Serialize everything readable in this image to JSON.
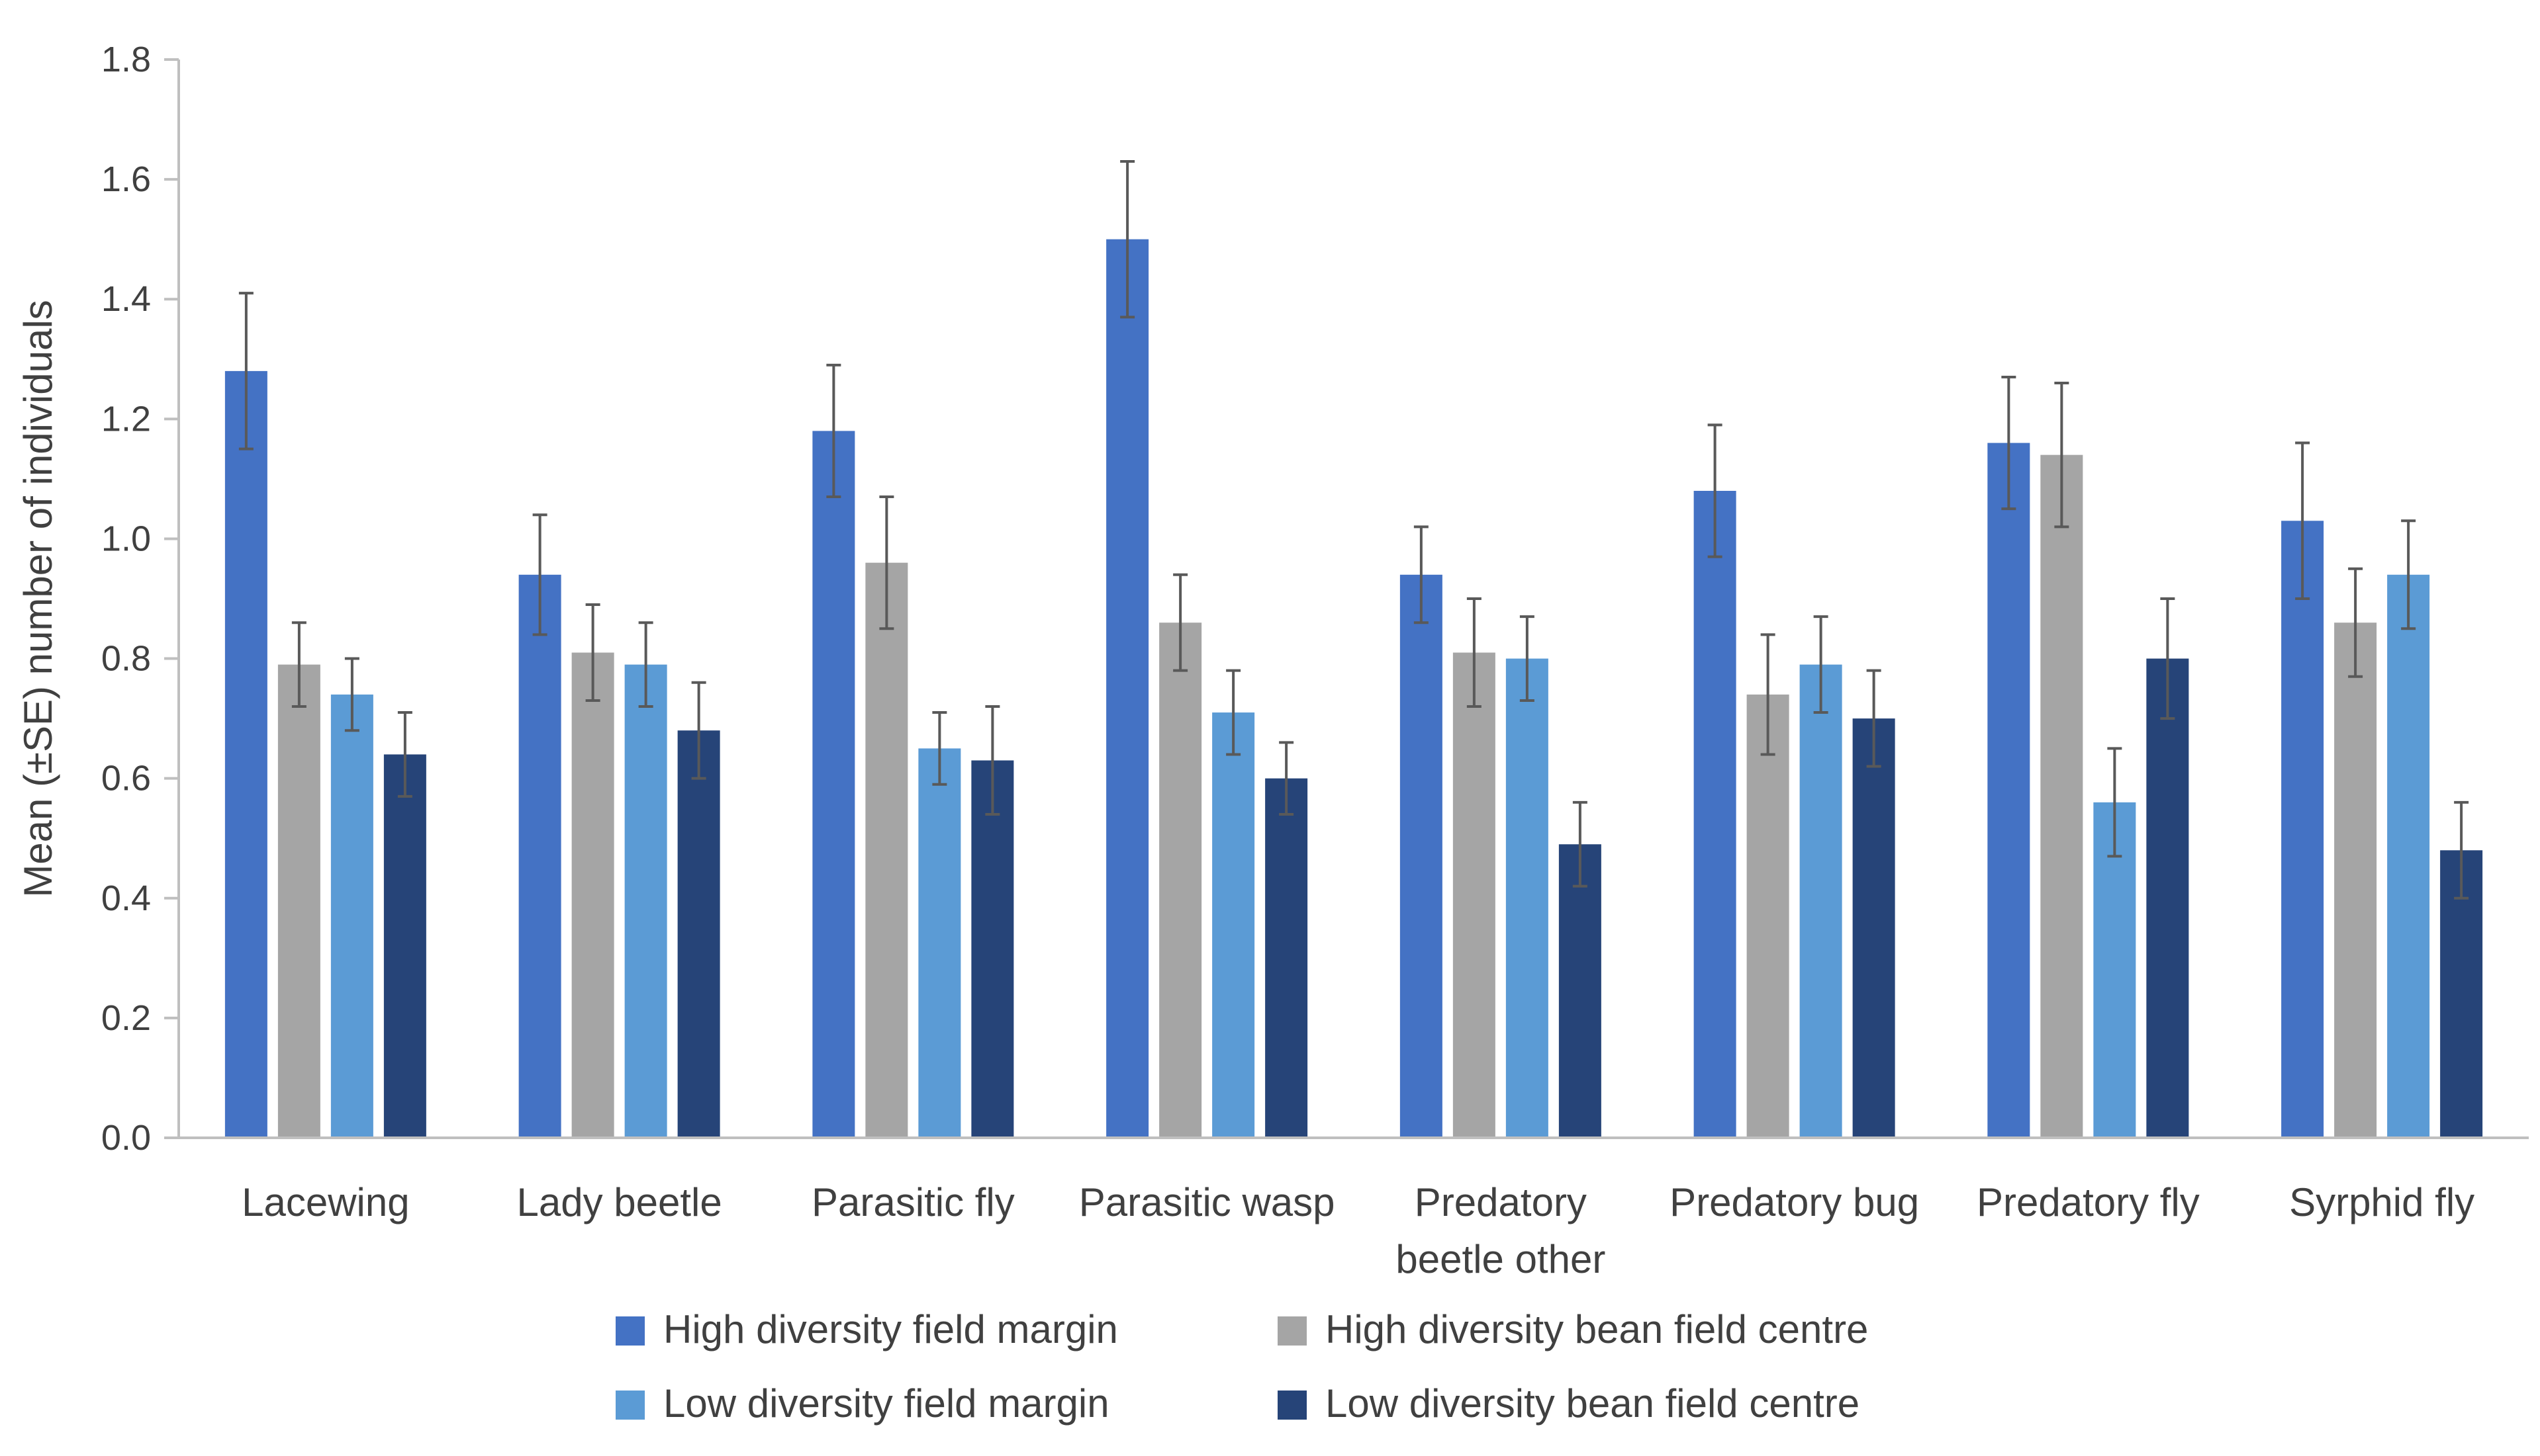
{
  "chart_data": {
    "type": "bar",
    "title": "",
    "xlabel": "",
    "ylabel": "Mean (±SE) number of individuals",
    "ylim": [
      0,
      1.8
    ],
    "yticks": [
      "0.0",
      "0.2",
      "0.4",
      "0.6",
      "0.8",
      "1.0",
      "1.2",
      "1.4",
      "1.6",
      "1.8"
    ],
    "grid": false,
    "legend_position": "bottom",
    "categories": [
      [
        "Lacewing"
      ],
      [
        "Lady beetle"
      ],
      [
        "Parasitic fly"
      ],
      [
        "Parasitic wasp"
      ],
      [
        "Predatory",
        "beetle other"
      ],
      [
        "Predatory bug"
      ],
      [
        "Predatory fly"
      ],
      [
        "Syrphid fly"
      ]
    ],
    "series": [
      {
        "name": "High diversity field margin",
        "color": "#4472C4",
        "values": [
          1.28,
          0.94,
          1.18,
          1.5,
          0.94,
          1.08,
          1.16,
          1.03
        ],
        "errors": [
          0.13,
          0.1,
          0.11,
          0.13,
          0.08,
          0.11,
          0.11,
          0.13
        ]
      },
      {
        "name": "High diversity bean field centre",
        "color": "#A5A5A5",
        "values": [
          0.79,
          0.81,
          0.96,
          0.86,
          0.81,
          0.74,
          1.14,
          0.86
        ],
        "errors": [
          0.07,
          0.08,
          0.11,
          0.08,
          0.09,
          0.1,
          0.12,
          0.09
        ]
      },
      {
        "name": "Low diversity field margin",
        "color": "#5B9BD5",
        "values": [
          0.74,
          0.79,
          0.65,
          0.71,
          0.8,
          0.79,
          0.56,
          0.94
        ],
        "errors": [
          0.06,
          0.07,
          0.06,
          0.07,
          0.07,
          0.08,
          0.09,
          0.09
        ]
      },
      {
        "name": "Low diversity bean field centre",
        "color": "#264478",
        "values": [
          0.64,
          0.68,
          0.63,
          0.6,
          0.49,
          0.7,
          0.8,
          0.48
        ],
        "errors": [
          0.07,
          0.08,
          0.09,
          0.06,
          0.07,
          0.08,
          0.1,
          0.08
        ]
      }
    ]
  }
}
